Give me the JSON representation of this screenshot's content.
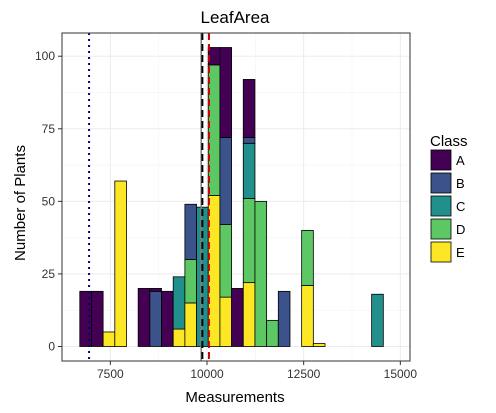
{
  "chart_data": {
    "type": "bar",
    "subtype": "stacked-histogram",
    "title": "LeafArea",
    "xlabel": "Measurements",
    "ylabel": "Number of Plants",
    "xlim": [
      6250,
      15250
    ],
    "ylim": [
      -5,
      108
    ],
    "xticks": [
      7500,
      10000,
      12500,
      15000
    ],
    "yticks": [
      0,
      25,
      50,
      75,
      100
    ],
    "grid": true,
    "legend": {
      "title": "Class",
      "position": "right"
    },
    "series": [
      {
        "name": "A",
        "color": "#440154"
      },
      {
        "name": "B",
        "color": "#3B528B"
      },
      {
        "name": "C",
        "color": "#21908C"
      },
      {
        "name": "D",
        "color": "#5DC863"
      },
      {
        "name": "E",
        "color": "#FDE725"
      }
    ],
    "bins": [
      {
        "x0": 6710,
        "x1": 7012,
        "values": [
          19,
          0,
          0,
          0,
          0
        ]
      },
      {
        "x0": 7012,
        "x1": 7314,
        "values": [
          19,
          0,
          0,
          0,
          0
        ]
      },
      {
        "x0": 7314,
        "x1": 7616,
        "values": [
          0,
          0,
          0,
          0,
          5
        ]
      },
      {
        "x0": 7616,
        "x1": 7918,
        "values": [
          0,
          0,
          0,
          0,
          57
        ]
      },
      {
        "x0": 8220,
        "x1": 8522,
        "values": [
          20,
          0,
          0,
          0,
          0
        ]
      },
      {
        "x0": 8522,
        "x1": 8824,
        "values": [
          1,
          19,
          0,
          0,
          0
        ]
      },
      {
        "x0": 8824,
        "x1": 9126,
        "values": [
          19,
          0,
          0,
          0,
          0
        ]
      },
      {
        "x0": 9126,
        "x1": 9428,
        "values": [
          0,
          0,
          18,
          0,
          6
        ]
      },
      {
        "x0": 9428,
        "x1": 9730,
        "values": [
          0,
          19,
          0,
          15,
          15
        ]
      },
      {
        "x0": 9730,
        "x1": 10032,
        "values": [
          0,
          0,
          48,
          0,
          0
        ]
      },
      {
        "x0": 10032,
        "x1": 10334,
        "values": [
          6,
          0,
          0,
          45,
          52
        ]
      },
      {
        "x0": 10334,
        "x1": 10636,
        "values": [
          31,
          30,
          0,
          25,
          17
        ]
      },
      {
        "x0": 10636,
        "x1": 10938,
        "values": [
          20,
          0,
          0,
          0,
          0
        ]
      },
      {
        "x0": 10938,
        "x1": 11240,
        "values": [
          20,
          2,
          19,
          29,
          22
        ]
      },
      {
        "x0": 11240,
        "x1": 11542,
        "values": [
          0,
          0,
          0,
          50,
          0
        ]
      },
      {
        "x0": 11542,
        "x1": 11844,
        "values": [
          0,
          0,
          0,
          9,
          0
        ]
      },
      {
        "x0": 11844,
        "x1": 12146,
        "values": [
          0,
          19,
          0,
          0,
          0
        ]
      },
      {
        "x0": 12448,
        "x1": 12750,
        "values": [
          0,
          0,
          0,
          19,
          21
        ]
      },
      {
        "x0": 12750,
        "x1": 13052,
        "values": [
          0,
          0,
          0,
          0,
          1
        ]
      },
      {
        "x0": 13052,
        "x1": 14258,
        "values": [
          0,
          0,
          0,
          0,
          0
        ]
      },
      {
        "x0": 14258,
        "x1": 14560,
        "values": [
          0,
          0,
          18,
          0,
          0
        ]
      }
    ],
    "reference_lines": [
      {
        "value": 6950,
        "color": "#000080",
        "style": "dotted"
      },
      {
        "value": 9850,
        "color": "#808080",
        "style": "solid"
      },
      {
        "value": 9880,
        "color": "#000000",
        "style": "dashed"
      },
      {
        "value": 10050,
        "color": "#CC0000",
        "style": "dashed"
      }
    ]
  }
}
